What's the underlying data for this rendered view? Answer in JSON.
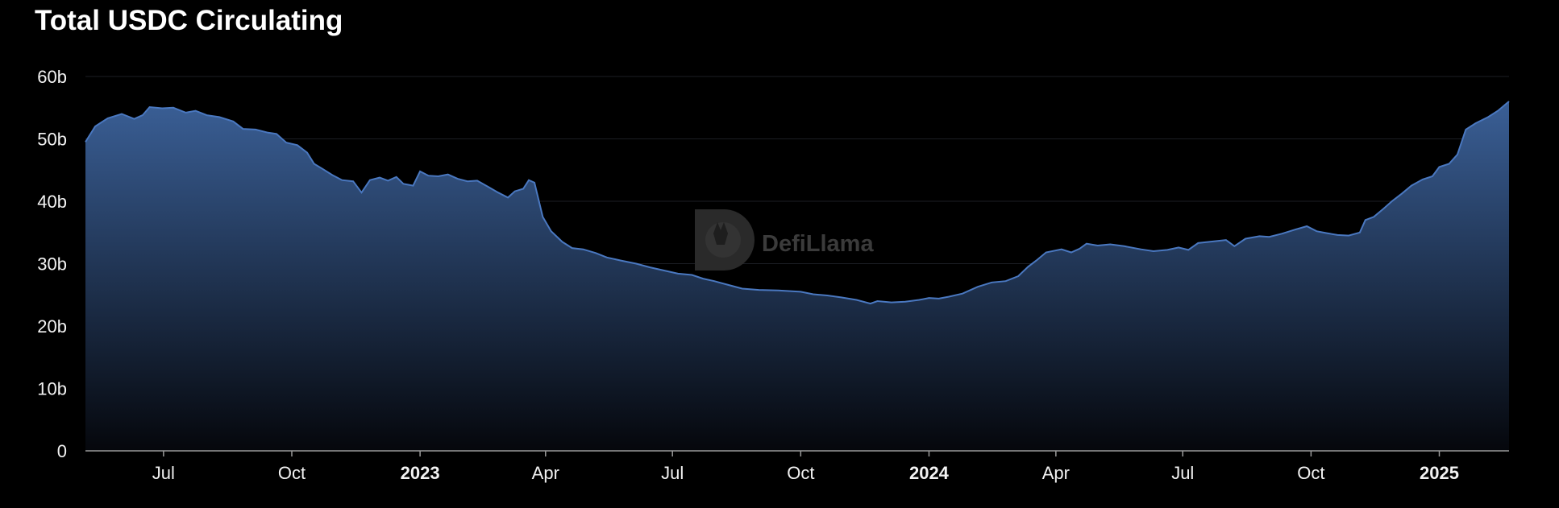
{
  "title": "Total USDC Circulating",
  "watermark": {
    "text": "DefiLlama",
    "icon": "llama-logo-icon"
  },
  "colors": {
    "line": "#4a78c0",
    "fill_top": "#3a5f96",
    "fill_bottom": "#05070c",
    "grid": "#1c1e24",
    "axis": "#9a9a9a"
  },
  "chart_data": {
    "type": "area",
    "title": "Total USDC Circulating",
    "xlabel": "",
    "ylabel": "",
    "grid": true,
    "legend": "none",
    "ylim": [
      0,
      60
    ],
    "xlim": [
      "2022-05-06",
      "2025-02-20"
    ],
    "y_ticks": [
      {
        "value": 0,
        "label": "0"
      },
      {
        "value": 10,
        "label": "10b"
      },
      {
        "value": 20,
        "label": "20b"
      },
      {
        "value": 30,
        "label": "30b"
      },
      {
        "value": 40,
        "label": "40b"
      },
      {
        "value": 50,
        "label": "50b"
      },
      {
        "value": 60,
        "label": "60b"
      }
    ],
    "x_ticks": [
      {
        "date": "2022-07-01",
        "label": "Jul",
        "bold": false
      },
      {
        "date": "2022-10-01",
        "label": "Oct",
        "bold": false
      },
      {
        "date": "2023-01-01",
        "label": "2023",
        "bold": true
      },
      {
        "date": "2023-04-01",
        "label": "Apr",
        "bold": false
      },
      {
        "date": "2023-07-01",
        "label": "Jul",
        "bold": false
      },
      {
        "date": "2023-10-01",
        "label": "Oct",
        "bold": false
      },
      {
        "date": "2024-01-01",
        "label": "2024",
        "bold": true
      },
      {
        "date": "2024-04-01",
        "label": "Apr",
        "bold": false
      },
      {
        "date": "2024-07-01",
        "label": "Jul",
        "bold": false
      },
      {
        "date": "2024-10-01",
        "label": "Oct",
        "bold": false
      },
      {
        "date": "2025-01-01",
        "label": "2025",
        "bold": true
      }
    ],
    "series": [
      {
        "unit": "b",
        "points": [
          [
            "2022-05-06",
            49.5
          ],
          [
            "2022-05-13",
            52.0
          ],
          [
            "2022-05-22",
            53.3
          ],
          [
            "2022-06-01",
            54.0
          ],
          [
            "2022-06-10",
            53.2
          ],
          [
            "2022-06-16",
            53.8
          ],
          [
            "2022-06-21",
            55.1
          ],
          [
            "2022-06-30",
            54.9
          ],
          [
            "2022-07-08",
            55.0
          ],
          [
            "2022-07-17",
            54.2
          ],
          [
            "2022-07-24",
            54.5
          ],
          [
            "2022-08-01",
            53.8
          ],
          [
            "2022-08-10",
            53.5
          ],
          [
            "2022-08-20",
            52.8
          ],
          [
            "2022-08-27",
            51.6
          ],
          [
            "2022-09-05",
            51.5
          ],
          [
            "2022-09-14",
            51.0
          ],
          [
            "2022-09-20",
            50.8
          ],
          [
            "2022-09-27",
            49.4
          ],
          [
            "2022-10-05",
            49.0
          ],
          [
            "2022-10-12",
            47.8
          ],
          [
            "2022-10-17",
            46.0
          ],
          [
            "2022-10-23",
            45.2
          ],
          [
            "2022-10-30",
            44.2
          ],
          [
            "2022-11-06",
            43.4
          ],
          [
            "2022-11-14",
            43.2
          ],
          [
            "2022-11-20",
            41.4
          ],
          [
            "2022-11-26",
            43.4
          ],
          [
            "2022-12-03",
            43.8
          ],
          [
            "2022-12-09",
            43.3
          ],
          [
            "2022-12-15",
            43.9
          ],
          [
            "2022-12-20",
            42.8
          ],
          [
            "2022-12-27",
            42.5
          ],
          [
            "2023-01-01",
            44.8
          ],
          [
            "2023-01-07",
            44.1
          ],
          [
            "2023-01-14",
            44.0
          ],
          [
            "2023-01-21",
            44.3
          ],
          [
            "2023-01-28",
            43.6
          ],
          [
            "2023-02-04",
            43.2
          ],
          [
            "2023-02-11",
            43.3
          ],
          [
            "2023-02-19",
            42.3
          ],
          [
            "2023-02-26",
            41.4
          ],
          [
            "2023-03-05",
            40.6
          ],
          [
            "2023-03-10",
            41.6
          ],
          [
            "2023-03-16",
            42.0
          ],
          [
            "2023-03-20",
            43.4
          ],
          [
            "2023-03-24",
            43.0
          ],
          [
            "2023-03-30",
            37.5
          ],
          [
            "2023-04-05",
            35.2
          ],
          [
            "2023-04-13",
            33.5
          ],
          [
            "2023-04-20",
            32.5
          ],
          [
            "2023-04-28",
            32.3
          ],
          [
            "2023-05-07",
            31.7
          ],
          [
            "2023-05-15",
            31.0
          ],
          [
            "2023-05-25",
            30.5
          ],
          [
            "2023-06-05",
            30.0
          ],
          [
            "2023-06-15",
            29.4
          ],
          [
            "2023-06-25",
            28.9
          ],
          [
            "2023-07-05",
            28.4
          ],
          [
            "2023-07-15",
            28.2
          ],
          [
            "2023-07-23",
            27.6
          ],
          [
            "2023-07-31",
            27.2
          ],
          [
            "2023-08-10",
            26.6
          ],
          [
            "2023-08-20",
            26.0
          ],
          [
            "2023-09-01",
            25.8
          ],
          [
            "2023-09-15",
            25.7
          ],
          [
            "2023-10-01",
            25.5
          ],
          [
            "2023-10-10",
            25.1
          ],
          [
            "2023-10-20",
            24.9
          ],
          [
            "2023-10-30",
            24.6
          ],
          [
            "2023-11-10",
            24.2
          ],
          [
            "2023-11-20",
            23.6
          ],
          [
            "2023-11-25",
            24.0
          ],
          [
            "2023-12-05",
            23.8
          ],
          [
            "2023-12-15",
            23.9
          ],
          [
            "2023-12-25",
            24.2
          ],
          [
            "2024-01-01",
            24.5
          ],
          [
            "2024-01-08",
            24.4
          ],
          [
            "2024-01-15",
            24.7
          ],
          [
            "2024-01-25",
            25.2
          ],
          [
            "2024-02-05",
            26.3
          ],
          [
            "2024-02-15",
            27.0
          ],
          [
            "2024-02-25",
            27.2
          ],
          [
            "2024-03-05",
            28.0
          ],
          [
            "2024-03-12",
            29.5
          ],
          [
            "2024-03-18",
            30.5
          ],
          [
            "2024-03-25",
            31.8
          ],
          [
            "2024-04-05",
            32.3
          ],
          [
            "2024-04-12",
            31.8
          ],
          [
            "2024-04-18",
            32.4
          ],
          [
            "2024-04-23",
            33.2
          ],
          [
            "2024-05-01",
            32.9
          ],
          [
            "2024-05-10",
            33.1
          ],
          [
            "2024-05-20",
            32.8
          ],
          [
            "2024-06-01",
            32.3
          ],
          [
            "2024-06-10",
            32.0
          ],
          [
            "2024-06-20",
            32.2
          ],
          [
            "2024-06-28",
            32.6
          ],
          [
            "2024-07-05",
            32.2
          ],
          [
            "2024-07-12",
            33.3
          ],
          [
            "2024-07-20",
            33.5
          ],
          [
            "2024-08-01",
            33.8
          ],
          [
            "2024-08-07",
            32.8
          ],
          [
            "2024-08-15",
            34.0
          ],
          [
            "2024-08-25",
            34.4
          ],
          [
            "2024-09-01",
            34.3
          ],
          [
            "2024-09-10",
            34.8
          ],
          [
            "2024-09-20",
            35.5
          ],
          [
            "2024-09-28",
            36.0
          ],
          [
            "2024-10-05",
            35.2
          ],
          [
            "2024-10-12",
            34.9
          ],
          [
            "2024-10-20",
            34.6
          ],
          [
            "2024-10-28",
            34.5
          ],
          [
            "2024-11-05",
            35.0
          ],
          [
            "2024-11-09",
            37.0
          ],
          [
            "2024-11-15",
            37.5
          ],
          [
            "2024-11-22",
            38.8
          ],
          [
            "2024-11-28",
            40.0
          ],
          [
            "2024-12-05",
            41.2
          ],
          [
            "2024-12-12",
            42.5
          ],
          [
            "2024-12-20",
            43.5
          ],
          [
            "2024-12-27",
            44.0
          ],
          [
            "2025-01-01",
            45.5
          ],
          [
            "2025-01-08",
            46.0
          ],
          [
            "2025-01-14",
            47.5
          ],
          [
            "2025-01-20",
            51.5
          ],
          [
            "2025-01-27",
            52.5
          ],
          [
            "2025-02-05",
            53.5
          ],
          [
            "2025-02-12",
            54.5
          ],
          [
            "2025-02-20",
            56.0
          ]
        ]
      }
    ]
  }
}
